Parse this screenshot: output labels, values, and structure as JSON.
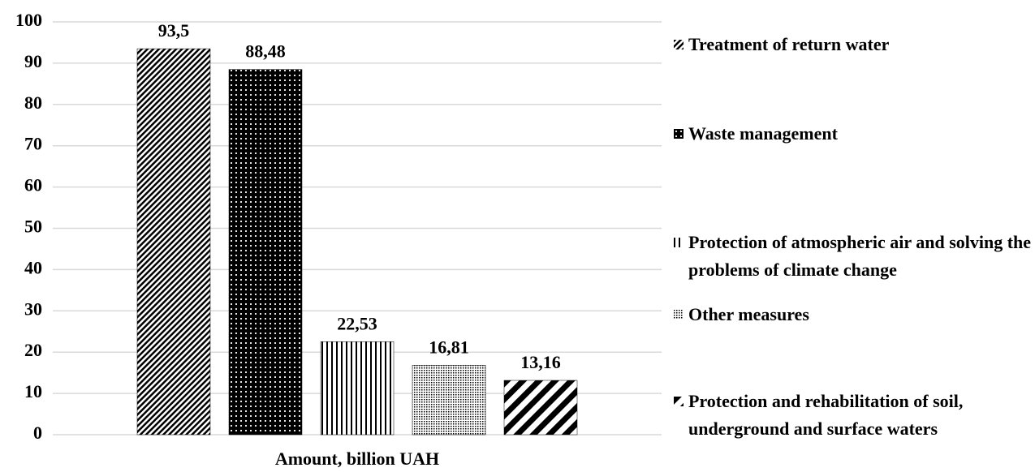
{
  "chart_data": {
    "type": "bar",
    "categories": [
      "Amount, billion UAH"
    ],
    "series": [
      {
        "name": "Treatment of return water",
        "color": "#000000",
        "pattern": "diagonal-fine",
        "values": [
          93.5
        ],
        "value_labels": [
          "93,5"
        ]
      },
      {
        "name": "Waste management",
        "color": "#000000",
        "pattern": "dots-dark",
        "values": [
          88.48
        ],
        "value_labels": [
          "88,48"
        ]
      },
      {
        "name": "Protection of atmospheric air and solving the problems of climate change",
        "color": "#000000",
        "pattern": "vertical",
        "values": [
          22.53
        ],
        "value_labels": [
          "22,53"
        ]
      },
      {
        "name": "Other measures",
        "color": "#000000",
        "pattern": "dots-light",
        "values": [
          16.81
        ],
        "value_labels": [
          "16,81"
        ]
      },
      {
        "name": "Protection and rehabilitation of soil, underground and surface waters",
        "color": "#000000",
        "pattern": "diagonal-wide",
        "values": [
          13.16
        ],
        "value_labels": [
          "13,16"
        ]
      }
    ],
    "ylim": [
      0,
      100
    ],
    "yticks": [
      0,
      10,
      20,
      30,
      40,
      50,
      60,
      70,
      80,
      90,
      100
    ],
    "grid": true,
    "legend": "right"
  }
}
